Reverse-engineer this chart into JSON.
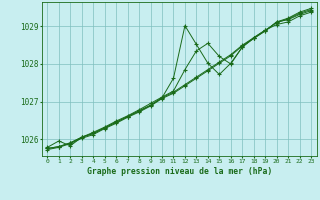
{
  "title": "Graphe pression niveau de la mer (hPa)",
  "bg_color": "#c8eef0",
  "grid_color": "#7fbfbf",
  "line_color": "#1a6b1a",
  "marker_color": "#1a6b1a",
  "xlim": [
    -0.5,
    23.5
  ],
  "ylim": [
    1025.55,
    1029.65
  ],
  "yticks": [
    1026,
    1027,
    1028,
    1029
  ],
  "xticks": [
    0,
    1,
    2,
    3,
    4,
    5,
    6,
    7,
    8,
    9,
    10,
    11,
    12,
    13,
    14,
    15,
    16,
    17,
    18,
    19,
    20,
    21,
    22,
    23
  ],
  "series": [
    [
      1025.78,
      1025.95,
      1025.82,
      1026.05,
      1026.18,
      1026.32,
      1026.48,
      1026.62,
      1026.78,
      1026.95,
      1027.12,
      1027.28,
      1027.85,
      1028.35,
      1028.55,
      1028.2,
      1028.0,
      1028.45,
      1028.68,
      1028.88,
      1029.12,
      1029.18,
      1029.32,
      1029.42
    ],
    [
      1025.72,
      1025.78,
      1025.88,
      1026.02,
      1026.12,
      1026.28,
      1026.42,
      1026.58,
      1026.72,
      1026.88,
      1027.08,
      1027.22,
      1027.42,
      1027.62,
      1027.82,
      1028.02,
      1028.22,
      1028.48,
      1028.68,
      1028.88,
      1029.12,
      1029.22,
      1029.38,
      1029.48
    ],
    [
      1025.75,
      1025.8,
      1025.9,
      1026.05,
      1026.15,
      1026.3,
      1026.45,
      1026.6,
      1026.75,
      1026.9,
      1027.1,
      1027.62,
      1029.02,
      1028.52,
      1028.02,
      1027.72,
      1028.02,
      1028.45,
      1028.7,
      1028.9,
      1029.05,
      1029.12,
      1029.28,
      1029.38
    ],
    [
      1025.75,
      1025.8,
      1025.9,
      1026.05,
      1026.15,
      1026.3,
      1026.45,
      1026.6,
      1026.75,
      1026.9,
      1027.1,
      1027.25,
      1027.45,
      1027.65,
      1027.85,
      1028.05,
      1028.25,
      1028.5,
      1028.7,
      1028.9,
      1029.1,
      1029.2,
      1029.35,
      1029.45
    ]
  ]
}
